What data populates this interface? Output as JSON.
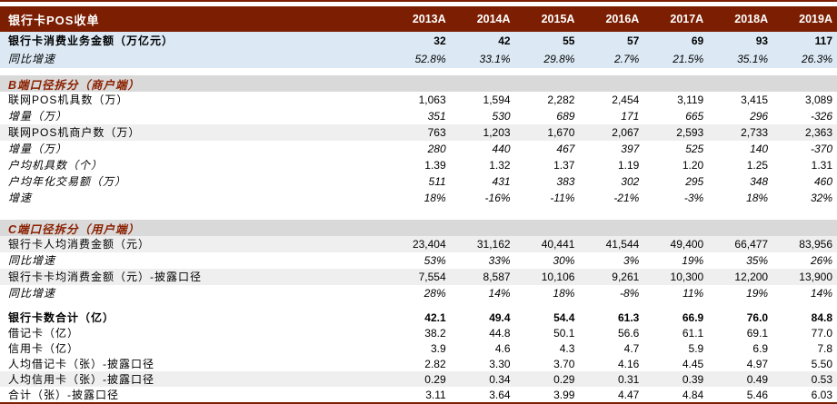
{
  "colors": {
    "dark_red": "#7B1E02",
    "section_title_red": "#8B2000",
    "header_text": "#FFFFFF",
    "light_blue": "#DCE9F5",
    "section_gray": "#D9D9D9",
    "stripe_gray": "#EFEFEF"
  },
  "table": {
    "title": "银行卡POS收单",
    "columns": [
      "2013A",
      "2014A",
      "2015A",
      "2016A",
      "2017A",
      "2018A",
      "2019A"
    ],
    "sections": [
      {
        "id": "overview",
        "header": null,
        "rows": [
          {
            "label": "银行卡消费业务金额（万亿元）",
            "values": [
              "32",
              "42",
              "55",
              "57",
              "69",
              "93",
              "117"
            ],
            "emphasis": "bold"
          },
          {
            "label": "同比增速",
            "values": [
              "52.8%",
              "33.1%",
              "29.8%",
              "2.7%",
              "21.5%",
              "35.1%",
              "26.3%"
            ],
            "emphasis": "italic"
          }
        ]
      },
      {
        "id": "b-merchant",
        "header": "B端口径拆分（商户端）",
        "rows": [
          {
            "label": "联网POS机具数（万）",
            "values": [
              "1,063",
              "1,594",
              "2,282",
              "2,454",
              "3,119",
              "3,415",
              "3,089"
            ]
          },
          {
            "label": "增量（万）",
            "values": [
              "351",
              "530",
              "689",
              "171",
              "665",
              "296",
              "-326"
            ],
            "emphasis": "italic"
          },
          {
            "label": "联网POS机商户数（万）",
            "values": [
              "763",
              "1,203",
              "1,670",
              "2,067",
              "2,593",
              "2,733",
              "2,363"
            ],
            "highlight": true
          },
          {
            "label": "增量（万）",
            "values": [
              "280",
              "440",
              "467",
              "397",
              "525",
              "140",
              "-370"
            ],
            "emphasis": "italic"
          },
          {
            "label": "户均机具数（个）",
            "values": [
              "1.39",
              "1.32",
              "1.37",
              "1.19",
              "1.20",
              "1.25",
              "1.31"
            ],
            "label_emphasis": "italic"
          },
          {
            "label": "户均年化交易额（万）",
            "values": [
              "511",
              "431",
              "383",
              "302",
              "295",
              "348",
              "460"
            ],
            "emphasis": "italic"
          },
          {
            "label": "增速",
            "values": [
              "18%",
              "-16%",
              "-11%",
              "-21%",
              "-3%",
              "18%",
              "32%"
            ],
            "emphasis": "italic"
          }
        ]
      },
      {
        "id": "c-user",
        "header": "C端口径拆分（用户端）",
        "rows": [
          {
            "label": "银行卡人均消费金额（元）",
            "values": [
              "23,404",
              "31,162",
              "40,441",
              "41,544",
              "49,400",
              "66,477",
              "83,956"
            ],
            "highlight": true
          },
          {
            "label": "同比增速",
            "values": [
              "53%",
              "33%",
              "30%",
              "3%",
              "19%",
              "35%",
              "26%"
            ],
            "emphasis": "italic"
          },
          {
            "label": "银行卡卡均消费金额（元）-披露口径",
            "values": [
              "7,554",
              "8,587",
              "10,106",
              "9,261",
              "10,300",
              "12,200",
              "13,900"
            ],
            "highlight": true
          },
          {
            "label": "同比增速",
            "values": [
              "28%",
              "14%",
              "18%",
              "-8%",
              "11%",
              "19%",
              "14%"
            ],
            "emphasis": "italic"
          }
        ]
      },
      {
        "id": "cards",
        "header": null,
        "rows": [
          {
            "label": "银行卡数合计（亿）",
            "values": [
              "42.1",
              "49.4",
              "54.4",
              "61.3",
              "66.9",
              "76.0",
              "84.8"
            ],
            "emphasis": "bold"
          },
          {
            "label": "借记卡（亿）",
            "values": [
              "38.2",
              "44.8",
              "50.1",
              "56.6",
              "61.1",
              "69.1",
              "77.0"
            ]
          },
          {
            "label": "信用卡（亿）",
            "values": [
              "3.9",
              "4.6",
              "4.3",
              "4.7",
              "5.9",
              "6.9",
              "7.8"
            ]
          },
          {
            "label": "人均借记卡（张）-披露口径",
            "values": [
              "2.82",
              "3.30",
              "3.70",
              "4.16",
              "4.45",
              "4.97",
              "5.50"
            ]
          },
          {
            "label": "人均信用卡（张）-披露口径",
            "values": [
              "0.29",
              "0.34",
              "0.29",
              "0.31",
              "0.39",
              "0.49",
              "0.53"
            ],
            "highlight": true
          },
          {
            "label": "合计（张）-披露口径",
            "values": [
              "3.11",
              "3.64",
              "3.99",
              "4.47",
              "4.84",
              "5.46",
              "6.03"
            ]
          }
        ]
      }
    ]
  }
}
